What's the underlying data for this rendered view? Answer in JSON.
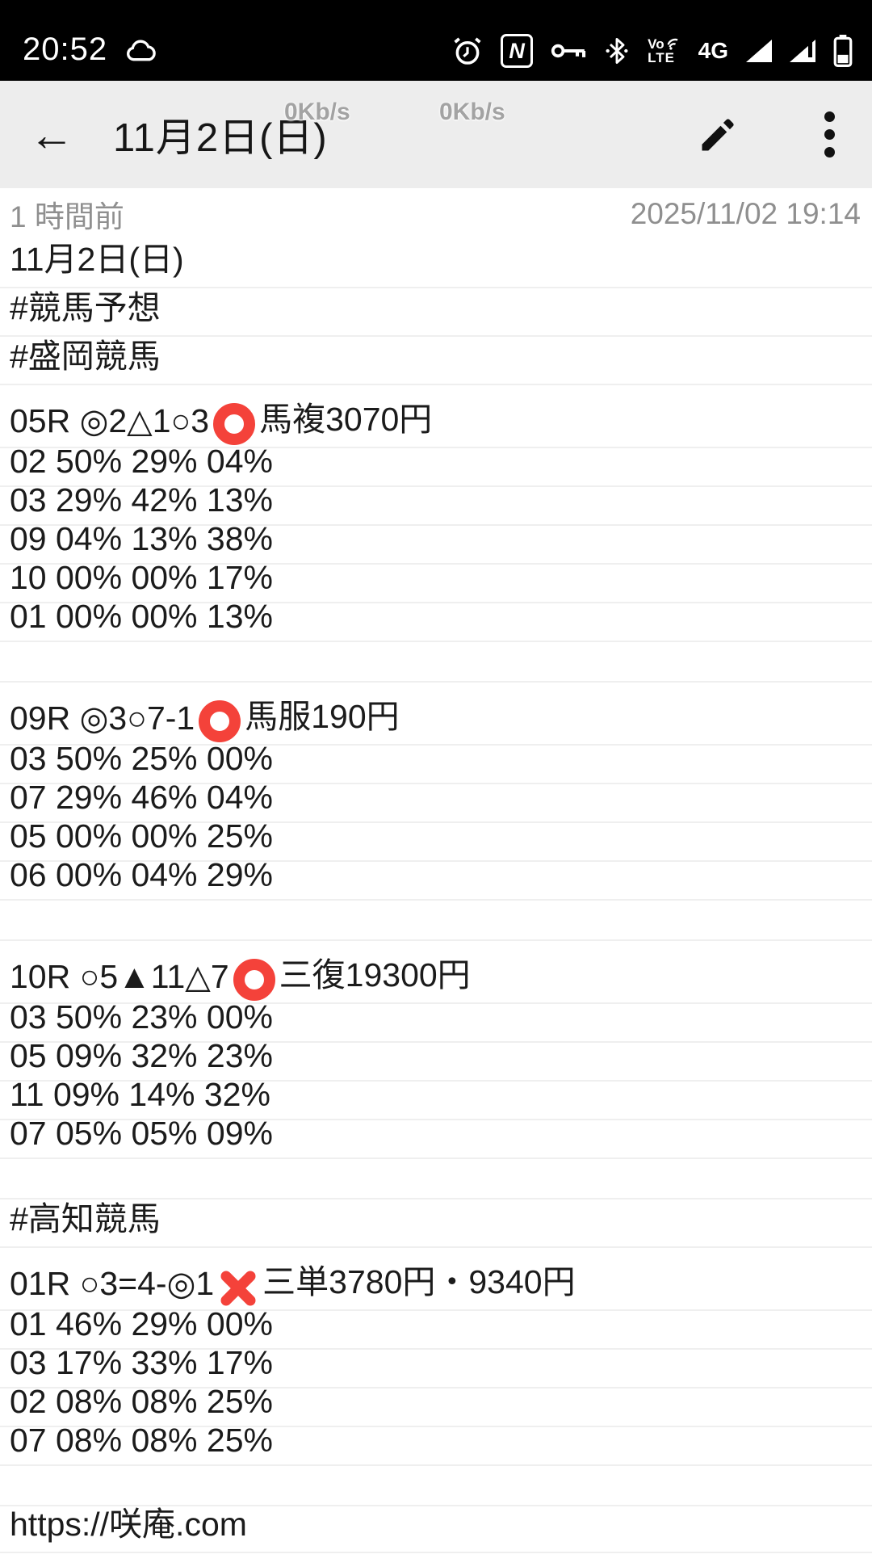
{
  "status_bar": {
    "time": "20:52",
    "network_type": "4G",
    "volte_top": "Vo",
    "volte_bottom": "LTE",
    "nfc_letter": "N",
    "icons": [
      "cloud-icon",
      "alarm-icon",
      "nfc-icon",
      "key-icon",
      "bluetooth-icon",
      "volte-icon",
      "signal-icon",
      "signal-secondary-icon",
      "battery-icon"
    ]
  },
  "header": {
    "title": "11月2日(日)"
  },
  "net_speed_overlay": {
    "left": "0Kb/s",
    "right": "0Kb/s"
  },
  "meta": {
    "relative_time": "1 時間前",
    "timestamp": "2025/11/02 19:14"
  },
  "note": {
    "lines": [
      {
        "type": "text",
        "text": "11月2日(日)"
      },
      {
        "type": "text",
        "text": "#競馬予想"
      },
      {
        "type": "text",
        "text": "#盛岡競馬"
      },
      {
        "type": "race",
        "pre": "05R ◎2△1○3",
        "mark": "red-circle",
        "post": "馬複3070円"
      },
      {
        "type": "pct",
        "text": "02 50% 29% 04%"
      },
      {
        "type": "pct",
        "text": "03 29% 42% 13%"
      },
      {
        "type": "pct",
        "text": "09 04% 13% 38%"
      },
      {
        "type": "pct",
        "text": "10 00% 00% 17%"
      },
      {
        "type": "pct",
        "text": "01 00% 00% 13%"
      },
      {
        "type": "blank",
        "text": ""
      },
      {
        "type": "race",
        "pre": "09R ◎3○7-1",
        "mark": "red-circle",
        "post": "馬服190円"
      },
      {
        "type": "pct",
        "text": "03 50% 25% 00%"
      },
      {
        "type": "pct",
        "text": "07 29% 46% 04%"
      },
      {
        "type": "pct",
        "text": "05 00% 00% 25%"
      },
      {
        "type": "pct",
        "text": "06 00% 04% 29%"
      },
      {
        "type": "blank",
        "text": ""
      },
      {
        "type": "race",
        "pre": "10R ○5▲11△7",
        "mark": "red-circle",
        "post": "三復19300円"
      },
      {
        "type": "pct",
        "text": "03 50% 23% 00%"
      },
      {
        "type": "pct",
        "text": "05 09% 32% 23%"
      },
      {
        "type": "pct",
        "text": "11 09% 14% 32%"
      },
      {
        "type": "pct",
        "text": "07 05% 05% 09%"
      },
      {
        "type": "blank",
        "text": ""
      },
      {
        "type": "text",
        "text": "#高知競馬"
      },
      {
        "type": "race",
        "pre": "01R ○3=4-◎1",
        "mark": "red-cross",
        "post": "三単3780円・9340円"
      },
      {
        "type": "pct",
        "text": "01 46% 29% 00%"
      },
      {
        "type": "pct",
        "text": "03 17% 33% 17%"
      },
      {
        "type": "pct",
        "text": "02 08% 08% 25%"
      },
      {
        "type": "pct",
        "text": "07 08% 08% 25%"
      },
      {
        "type": "blank",
        "text": ""
      },
      {
        "type": "url",
        "text": "https://咲庵.com"
      }
    ]
  },
  "colors": {
    "status_bar_bg": "#000000",
    "header_bg": "#ededed",
    "accent_red": "#f4423a",
    "rule_line": "#efefef",
    "muted_text": "#8f8f8f"
  }
}
